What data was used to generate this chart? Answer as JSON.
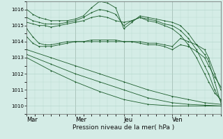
{
  "bg_color": "#d4ece6",
  "grid_color": "#b0d4c8",
  "line_color": "#1a5c2a",
  "marker": "+",
  "xlabel": "Pression niveau de la mer( hPa )",
  "xtick_labels": [
    "Mar",
    "Mer",
    "Jeu",
    "Ven"
  ],
  "ytick_min": 1010,
  "ytick_max": 1016,
  "ytick_step": 1,
  "xmin": 0,
  "xmax": 96,
  "series": [
    {
      "x": [
        0,
        3,
        6,
        9,
        12,
        16,
        20,
        24,
        28,
        32,
        36,
        40,
        44,
        48,
        52,
        56,
        60,
        64,
        68,
        72,
        76,
        80,
        84,
        88,
        90,
        93,
        96
      ],
      "y": [
        1016.0,
        1015.7,
        1015.5,
        1015.4,
        1015.3,
        1015.3,
        1015.3,
        1015.4,
        1015.6,
        1016.1,
        1016.5,
        1016.4,
        1016.1,
        1014.8,
        1015.2,
        1015.6,
        1015.5,
        1015.4,
        1015.3,
        1015.2,
        1015.0,
        1014.5,
        1013.8,
        1013.2,
        1012.8,
        1011.5,
        1010.2
      ]
    },
    {
      "x": [
        0,
        3,
        6,
        9,
        12,
        16,
        20,
        24,
        28,
        32,
        36,
        40,
        44,
        48,
        52,
        56,
        60,
        64,
        68,
        72,
        76,
        80,
        84,
        88,
        90,
        93,
        96
      ],
      "y": [
        1015.5,
        1015.3,
        1015.2,
        1015.1,
        1015.1,
        1015.1,
        1015.2,
        1015.3,
        1015.5,
        1015.8,
        1016.0,
        1015.9,
        1015.7,
        1015.0,
        1015.3,
        1015.5,
        1015.4,
        1015.3,
        1015.1,
        1015.0,
        1014.7,
        1014.2,
        1013.5,
        1012.5,
        1012.0,
        1011.0,
        1010.3
      ]
    },
    {
      "x": [
        0,
        3,
        6,
        9,
        12,
        16,
        20,
        24,
        28,
        32,
        36,
        40,
        44,
        48,
        52,
        56,
        60,
        64,
        68,
        72,
        76,
        80,
        84,
        88,
        90,
        93,
        96
      ],
      "y": [
        1015.2,
        1015.1,
        1015.0,
        1015.0,
        1014.9,
        1015.0,
        1015.1,
        1015.2,
        1015.3,
        1015.5,
        1015.6,
        1015.5,
        1015.3,
        1015.2,
        1015.3,
        1015.5,
        1015.3,
        1015.2,
        1015.0,
        1014.8,
        1014.4,
        1013.8,
        1013.0,
        1012.0,
        1011.5,
        1010.8,
        1010.4
      ]
    },
    {
      "x": [
        0,
        3,
        6,
        9,
        12,
        16,
        20,
        24,
        28,
        32,
        36,
        40,
        44,
        48,
        52,
        56,
        60,
        64,
        68,
        72,
        76,
        80,
        84,
        88,
        90,
        93,
        96
      ],
      "y": [
        1014.8,
        1014.3,
        1013.9,
        1013.8,
        1013.8,
        1013.9,
        1014.0,
        1014.0,
        1014.0,
        1014.1,
        1014.1,
        1014.1,
        1014.1,
        1014.0,
        1014.0,
        1014.0,
        1013.9,
        1013.9,
        1013.8,
        1013.7,
        1014.2,
        1014.0,
        1013.8,
        1013.5,
        1013.0,
        1012.0,
        1011.0
      ]
    },
    {
      "x": [
        0,
        3,
        6,
        9,
        12,
        16,
        20,
        24,
        28,
        32,
        36,
        40,
        44,
        48,
        52,
        56,
        60,
        64,
        68,
        72,
        76,
        80,
        84,
        88,
        90,
        93,
        96
      ],
      "y": [
        1014.3,
        1013.9,
        1013.7,
        1013.7,
        1013.7,
        1013.8,
        1013.9,
        1014.0,
        1014.0,
        1014.0,
        1014.0,
        1014.0,
        1014.0,
        1014.0,
        1014.0,
        1013.9,
        1013.8,
        1013.8,
        1013.7,
        1013.5,
        1013.8,
        1013.7,
        1013.4,
        1013.0,
        1012.5,
        1011.8,
        1011.2
      ]
    },
    {
      "x": [
        0,
        12,
        24,
        36,
        48,
        60,
        72,
        80,
        88,
        96
      ],
      "y": [
        1013.5,
        1013.0,
        1012.5,
        1012.0,
        1011.5,
        1011.0,
        1010.6,
        1010.4,
        1010.2,
        1010.1
      ]
    },
    {
      "x": [
        0,
        12,
        24,
        36,
        48,
        60,
        72,
        80,
        88,
        96
      ],
      "y": [
        1013.2,
        1012.6,
        1012.0,
        1011.5,
        1011.0,
        1010.5,
        1010.2,
        1010.1,
        1010.05,
        1010.0
      ]
    },
    {
      "x": [
        0,
        12,
        24,
        36,
        48,
        60,
        72,
        80,
        88,
        96
      ],
      "y": [
        1013.0,
        1012.2,
        1011.5,
        1010.9,
        1010.4,
        1010.1,
        1010.0,
        1010.0,
        1010.0,
        1010.0
      ]
    }
  ]
}
